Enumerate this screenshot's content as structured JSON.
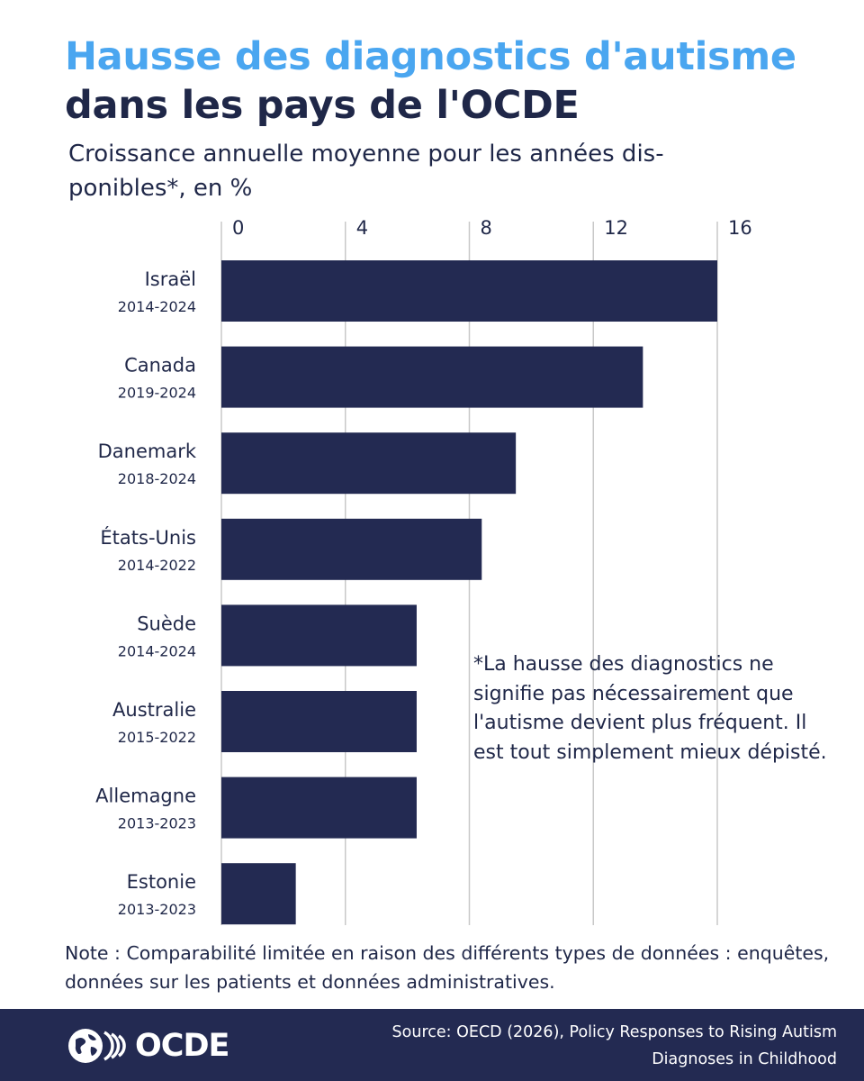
{
  "header": {
    "title_line1": "Hausse des diagnostics d'autisme",
    "title_line2": "dans les pays de l'OCDE",
    "subtitle": "Croissance annuelle moyenne pour les années dis-ponibles*, en %"
  },
  "annotation": "*La hausse des diagnostics ne signifie pas nécessairement que l'autisme devient plus fréquent. Il est tout simplement mieux dépisté.",
  "note": "Note : Comparabilité limitée en raison des différents types de données : enquêtes, données sur les patients et données administratives.",
  "footer": {
    "logo_text": "OCDE",
    "source": "Source: OECD (2026), Policy Responses to Rising Autism Diagnoses in Childhood"
  },
  "colors": {
    "title_accent": "#4aa6f0",
    "bar": "#232a52",
    "footer_bg": "#232a52",
    "gridline": "#c8c8c8"
  },
  "chart_data": {
    "type": "bar",
    "orientation": "horizontal",
    "title": "Hausse des diagnostics d'autisme dans les pays de l'OCDE",
    "subtitle": "Croissance annuelle moyenne pour les années disponibles*, en %",
    "xlim": [
      0,
      16
    ],
    "ticks": [
      0,
      4,
      8,
      12,
      16
    ],
    "tick_position": "top",
    "grid": true,
    "legend": "none",
    "categories": [
      "Israël",
      "Canada",
      "Danemark",
      "États-Unis",
      "Suède",
      "Australie",
      "Allemagne",
      "Estonie"
    ],
    "periods": [
      "2014-2024",
      "2019-2024",
      "2018-2024",
      "2014-2022",
      "2014-2024",
      "2015-2022",
      "2013-2023",
      "2013-2023"
    ],
    "values": [
      16.0,
      13.6,
      9.5,
      8.4,
      6.3,
      6.3,
      6.3,
      2.4
    ]
  }
}
